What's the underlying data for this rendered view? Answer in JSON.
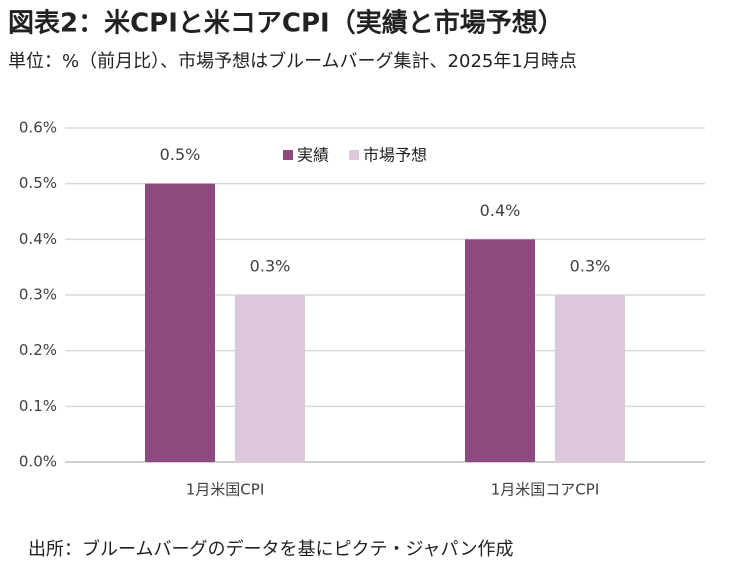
{
  "chart_data": {
    "type": "bar",
    "title": "図表2：米CPIと米コアCPI（実績と市場予想）",
    "subtitle": "単位：%（前月比）、市場予想はブルームバーグ集計、2025年1月時点",
    "source": "出所：ブルームバーグのデータを基にピクテ・ジャパン作成",
    "categories": [
      "1月米国CPI",
      "1月米国コアCPI"
    ],
    "series": [
      {
        "name": "実績",
        "color": "#8c4a7f",
        "values": [
          0.5,
          0.4
        ],
        "value_labels": [
          "0.5%",
          "0.4%"
        ]
      },
      {
        "name": "市場予想",
        "color": "#ddc8db",
        "values": [
          0.3,
          0.3
        ],
        "value_labels": [
          "0.3%",
          "0.3%"
        ]
      }
    ],
    "ylim": [
      0,
      0.6
    ],
    "yticks": [
      {
        "value": 0,
        "label": "0.0%"
      },
      {
        "value": 0.1,
        "label": "0.1%"
      },
      {
        "value": 0.2,
        "label": "0.2%"
      },
      {
        "value": 0.3,
        "label": "0.3%"
      },
      {
        "value": 0.4,
        "label": "0.4%"
      },
      {
        "value": 0.5,
        "label": "0.5%"
      },
      {
        "value": 0.6,
        "label": "0.6%"
      }
    ],
    "grid": true,
    "legend": "top"
  }
}
